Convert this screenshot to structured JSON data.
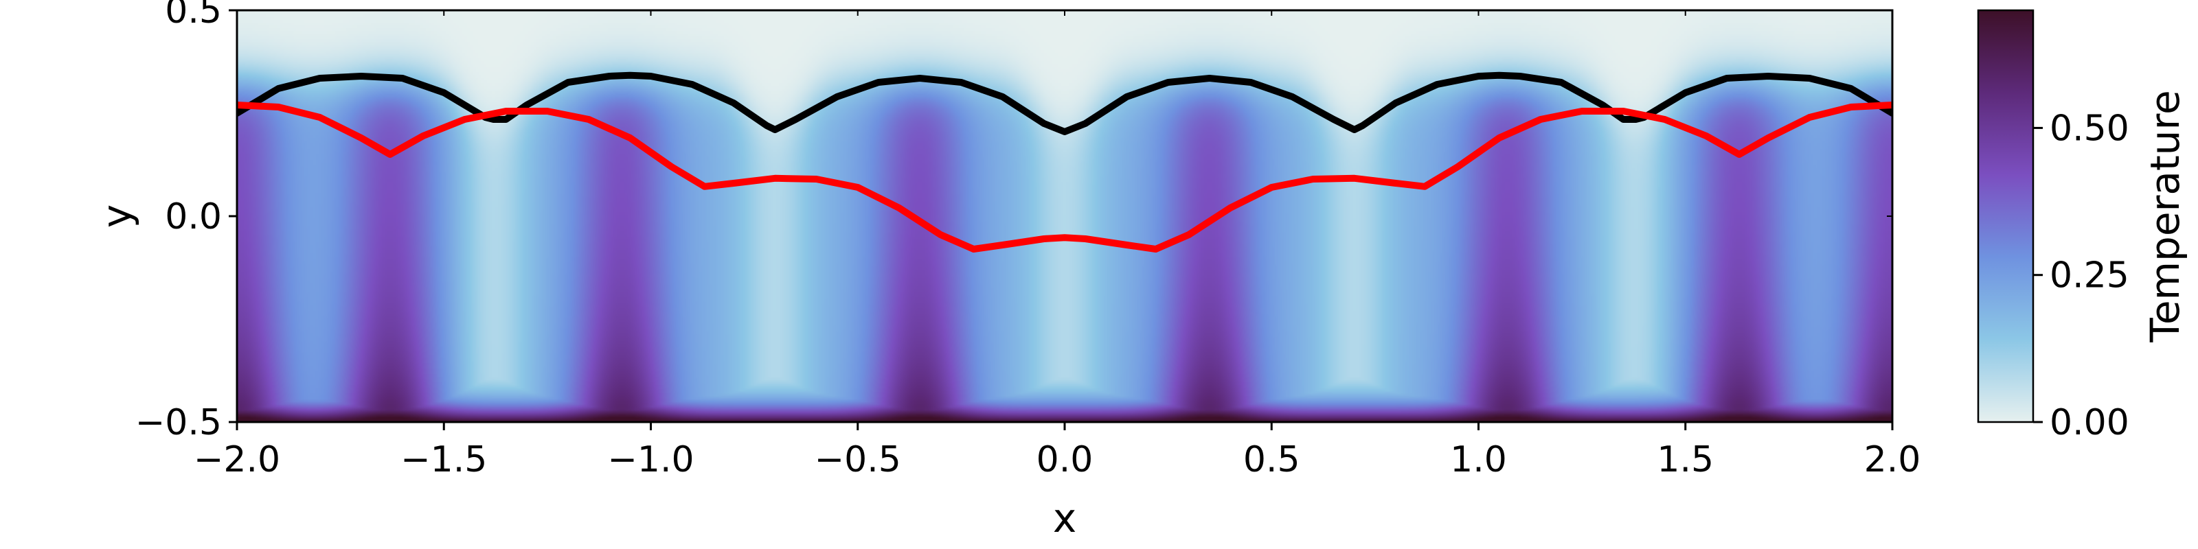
{
  "chart_data": {
    "type": "heatmap",
    "xlabel": "x",
    "ylabel": "y",
    "xlim": [
      -2.0,
      2.0
    ],
    "ylim": [
      -0.5,
      0.5
    ],
    "x_ticks": [
      {
        "value": -2.0,
        "label": "−2.0"
      },
      {
        "value": -1.5,
        "label": "−1.5"
      },
      {
        "value": -1.0,
        "label": "−1.0"
      },
      {
        "value": -0.5,
        "label": "−0.5"
      },
      {
        "value": 0.0,
        "label": "0.0"
      },
      {
        "value": 0.5,
        "label": "0.5"
      },
      {
        "value": 1.0,
        "label": "1.0"
      },
      {
        "value": 1.5,
        "label": "1.5"
      },
      {
        "value": 2.0,
        "label": "2.0"
      }
    ],
    "y_ticks": [
      {
        "value": -0.5,
        "label": "−0.5"
      },
      {
        "value": 0.0,
        "label": "0.0"
      },
      {
        "value": 0.5,
        "label": "0.5"
      }
    ],
    "field": {
      "description_value_max": 0.7,
      "hot_columns_x": [
        -1.63,
        -1.07,
        -0.35,
        0.35,
        1.07,
        1.63,
        -2.0,
        2.0
      ],
      "cool_columns_x": [
        -1.38,
        -0.7,
        0.0,
        0.7,
        1.38
      ]
    },
    "colorbar": {
      "label": "Temperature",
      "range": [
        0.0,
        0.7
      ],
      "ticks": [
        {
          "value": 0.0,
          "label": "0.00"
        },
        {
          "value": 0.25,
          "label": "0.25"
        },
        {
          "value": 0.5,
          "label": "0.50"
        }
      ],
      "colors": [
        "#e6f0ef",
        "#8cc7e6",
        "#6f92e0",
        "#7b4fc0",
        "#5d2a7a",
        "#3d1028"
      ]
    },
    "series": [
      {
        "color": "#000000",
        "x": [
          -2.0,
          -1.9,
          -1.8,
          -1.7,
          -1.6,
          -1.5,
          -1.4,
          -1.38,
          -1.35,
          -1.3,
          -1.2,
          -1.1,
          -1.05,
          -1.0,
          -0.9,
          -0.8,
          -0.72,
          -0.7,
          -0.65,
          -0.55,
          -0.45,
          -0.35,
          -0.25,
          -0.15,
          -0.05,
          0.0,
          0.05,
          0.15,
          0.25,
          0.35,
          0.45,
          0.55,
          0.65,
          0.7,
          0.72,
          0.8,
          0.9,
          1.0,
          1.05,
          1.1,
          1.2,
          1.3,
          1.35,
          1.38,
          1.4,
          1.5,
          1.6,
          1.7,
          1.8,
          1.9,
          2.0
        ],
        "y": [
          0.25,
          0.31,
          0.335,
          0.34,
          0.335,
          0.3,
          0.24,
          0.235,
          0.235,
          0.27,
          0.325,
          0.34,
          0.342,
          0.34,
          0.32,
          0.275,
          0.22,
          0.21,
          0.235,
          0.29,
          0.325,
          0.335,
          0.325,
          0.29,
          0.225,
          0.205,
          0.225,
          0.29,
          0.325,
          0.335,
          0.325,
          0.29,
          0.235,
          0.21,
          0.22,
          0.275,
          0.32,
          0.34,
          0.342,
          0.34,
          0.325,
          0.27,
          0.235,
          0.235,
          0.24,
          0.3,
          0.335,
          0.34,
          0.335,
          0.31,
          0.25
        ]
      },
      {
        "color": "#ff0000",
        "x": [
          -2.0,
          -1.9,
          -1.8,
          -1.7,
          -1.63,
          -1.55,
          -1.45,
          -1.35,
          -1.25,
          -1.15,
          -1.05,
          -0.95,
          -0.87,
          -0.8,
          -0.7,
          -0.6,
          -0.5,
          -0.4,
          -0.3,
          -0.22,
          -0.15,
          -0.05,
          0.0,
          0.05,
          0.15,
          0.22,
          0.3,
          0.4,
          0.5,
          0.6,
          0.7,
          0.8,
          0.87,
          0.95,
          1.05,
          1.15,
          1.25,
          1.35,
          1.45,
          1.55,
          1.63,
          1.7,
          1.8,
          1.9,
          2.0
        ],
        "y": [
          0.27,
          0.265,
          0.24,
          0.19,
          0.15,
          0.195,
          0.235,
          0.255,
          0.255,
          0.235,
          0.19,
          0.12,
          0.072,
          0.08,
          0.092,
          0.09,
          0.07,
          0.02,
          -0.045,
          -0.08,
          -0.07,
          -0.055,
          -0.052,
          -0.055,
          -0.07,
          -0.08,
          -0.045,
          0.02,
          0.07,
          0.09,
          0.092,
          0.08,
          0.072,
          0.12,
          0.19,
          0.235,
          0.255,
          0.255,
          0.235,
          0.195,
          0.15,
          0.19,
          0.24,
          0.265,
          0.27
        ]
      }
    ]
  }
}
